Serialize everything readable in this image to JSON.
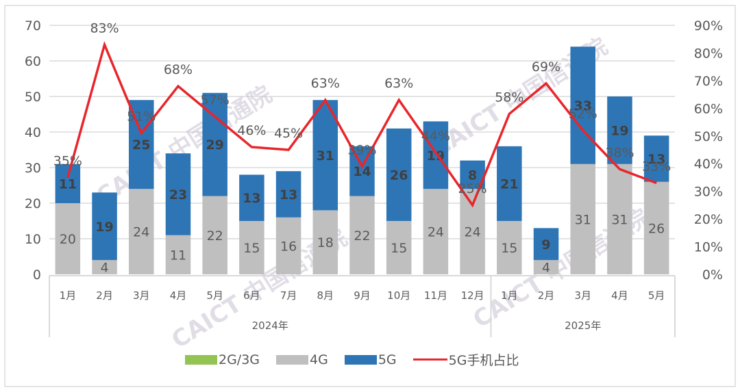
{
  "chart_data": {
    "type": "bar",
    "stacked": true,
    "title": "",
    "categories": [
      "1月",
      "2月",
      "3月",
      "4月",
      "5月",
      "6月",
      "7月",
      "8月",
      "9月",
      "10月",
      "11月",
      "12月",
      "1月",
      "2月",
      "3月",
      "4月",
      "5月"
    ],
    "category_groups": [
      {
        "label": "2024年",
        "start": 0,
        "end": 11
      },
      {
        "label": "2025年",
        "start": 12,
        "end": 16
      }
    ],
    "series": [
      {
        "name": "2G/3G",
        "type": "bar",
        "color": "#92c353",
        "values": [
          0,
          0,
          0,
          0,
          0,
          0,
          0,
          0,
          0,
          0,
          0,
          0,
          0,
          0,
          0,
          0,
          0
        ]
      },
      {
        "name": "4G",
        "type": "bar",
        "color": "#bfbfbf",
        "values": [
          20,
          4,
          24,
          11,
          22,
          15,
          16,
          18,
          22,
          15,
          24,
          24,
          15,
          4,
          31,
          31,
          26
        ]
      },
      {
        "name": "5G",
        "type": "bar",
        "color": "#2e75b6",
        "values": [
          11,
          19,
          25,
          23,
          29,
          13,
          13,
          31,
          14,
          26,
          19,
          8,
          21,
          9,
          33,
          19,
          13
        ]
      },
      {
        "name": "5G手机占比",
        "type": "line",
        "axis": "right",
        "color": "#e8262b",
        "values": [
          35,
          83,
          51,
          68,
          57,
          46,
          45,
          63,
          39,
          63,
          44,
          25,
          58,
          69,
          52,
          38,
          33
        ]
      }
    ],
    "y_left": {
      "min": 0,
      "max": 70,
      "step": 10,
      "ticks": [
        "0",
        "10",
        "20",
        "30",
        "40",
        "50",
        "60",
        "70"
      ]
    },
    "y_right": {
      "min": 0,
      "max": 90,
      "step": 10,
      "ticks": [
        "0%",
        "10%",
        "20%",
        "30%",
        "40%",
        "50%",
        "60%",
        "70%",
        "80%",
        "90%"
      ]
    },
    "grid": true,
    "legend_position": "bottom",
    "watermark": "CAICT 中国信通院"
  },
  "legend": [
    {
      "label": "2G/3G",
      "kind": "bar",
      "color": "#92c353"
    },
    {
      "label": "4G",
      "kind": "bar",
      "color": "#bfbfbf"
    },
    {
      "label": "5G",
      "kind": "bar",
      "color": "#2e75b6"
    },
    {
      "label": "5G手机占比",
      "kind": "line",
      "color": "#e8262b"
    }
  ]
}
